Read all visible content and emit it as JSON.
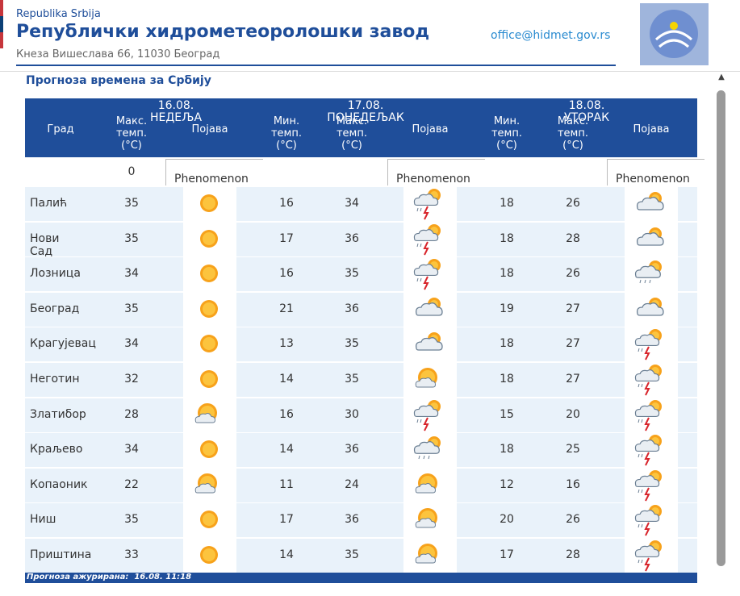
{
  "header": {
    "republic": "Republika Srbija",
    "title": "Републички хидрометеоролошки завод",
    "address": "Кнеза Вишеслава 66, 11030 Београд",
    "email": "office@hidmet.gov.rs"
  },
  "section_title": "Прогноза времена за Србију",
  "table": {
    "days": [
      "16.08. НЕДЕЉА",
      "17.08. ПОНЕДЕЉАК",
      "18.08. УТОРАК"
    ],
    "columns": [
      "Град",
      "Макс. темп. (°C)",
      "Појава",
      "Мин. темп. (°C)",
      "Макс. темп. (°C)",
      "Појава",
      "Мин. темп. (°C)",
      "Макс. темп. (°C)",
      "Појава"
    ],
    "placeholder_row": {
      "max": 0,
      "alts": [
        "Phenomenon",
        "Phenomenon",
        "Phenomenon"
      ]
    },
    "rows": [
      [
        "Палић",
        35,
        16,
        34,
        18,
        26
      ],
      [
        "Нови Сад",
        35,
        17,
        36,
        18,
        28
      ],
      [
        "Лозница",
        34,
        16,
        35,
        18,
        26
      ],
      [
        "Београд",
        35,
        21,
        36,
        19,
        27
      ],
      [
        "Крагујевац",
        34,
        13,
        35,
        18,
        27
      ],
      [
        "Неготин",
        32,
        14,
        35,
        18,
        27
      ],
      [
        "Златибор",
        28,
        16,
        30,
        15,
        20
      ],
      [
        "Краљево",
        34,
        14,
        36,
        18,
        25
      ],
      [
        "Копаоник",
        22,
        11,
        24,
        12,
        16
      ],
      [
        "Ниш",
        35,
        17,
        36,
        20,
        26
      ],
      [
        "Приштина",
        33,
        14,
        35,
        17,
        28
      ]
    ],
    "footer": "Прогноза ажурирана:  16.08. 11:18"
  }
}
